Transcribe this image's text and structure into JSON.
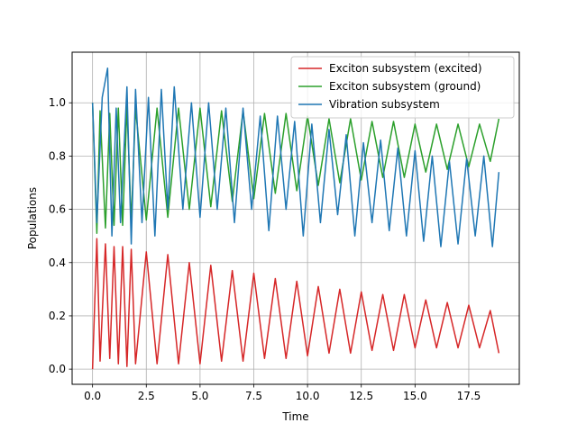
{
  "chart_data": {
    "type": "line",
    "title": "",
    "xlabel": "Time",
    "ylabel": "Populations",
    "xlim": [
      -0.95,
      19.85
    ],
    "ylim": [
      -0.057,
      1.19
    ],
    "x_ticks": [
      0.0,
      2.5,
      5.0,
      7.5,
      10.0,
      12.5,
      15.0,
      17.5
    ],
    "x_tick_labels": [
      "0.0",
      "2.5",
      "5.0",
      "7.5",
      "10.0",
      "12.5",
      "15.0",
      "17.5"
    ],
    "y_ticks": [
      0.0,
      0.2,
      0.4,
      0.6,
      0.8,
      1.0
    ],
    "y_tick_labels": [
      "0.0",
      "0.2",
      "0.4",
      "0.6",
      "0.8",
      "1.0"
    ],
    "grid": true,
    "legend_position": "upper right",
    "x_range": [
      0.0,
      18.9
    ],
    "series": [
      {
        "name": "Exciton subsystem (excited)",
        "color": "#d62728",
        "description": "fast oscillation ~2.6 cycles per time unit, starts at 0.0, peaks decaying from ~0.49 to ~0.22",
        "points": [
          [
            0.0,
            0.0
          ],
          [
            0.2,
            0.49
          ],
          [
            0.35,
            0.03
          ],
          [
            0.6,
            0.47
          ],
          [
            0.8,
            0.04
          ],
          [
            1.0,
            0.46
          ],
          [
            1.2,
            0.02
          ],
          [
            1.4,
            0.46
          ],
          [
            1.6,
            0.01
          ],
          [
            1.8,
            0.45
          ],
          [
            2.0,
            0.02
          ],
          [
            2.5,
            0.44
          ],
          [
            3.0,
            0.02
          ],
          [
            3.5,
            0.43
          ],
          [
            4.0,
            0.02
          ],
          [
            4.5,
            0.4
          ],
          [
            5.0,
            0.02
          ],
          [
            5.5,
            0.39
          ],
          [
            6.0,
            0.03
          ],
          [
            6.5,
            0.37
          ],
          [
            7.0,
            0.03
          ],
          [
            7.5,
            0.36
          ],
          [
            8.0,
            0.04
          ],
          [
            8.5,
            0.34
          ],
          [
            9.0,
            0.04
          ],
          [
            9.5,
            0.33
          ],
          [
            10.0,
            0.05
          ],
          [
            10.5,
            0.31
          ],
          [
            11.0,
            0.06
          ],
          [
            11.5,
            0.3
          ],
          [
            12.0,
            0.06
          ],
          [
            12.5,
            0.29
          ],
          [
            13.0,
            0.07
          ],
          [
            13.5,
            0.28
          ],
          [
            14.0,
            0.07
          ],
          [
            14.5,
            0.28
          ],
          [
            15.0,
            0.08
          ],
          [
            15.5,
            0.26
          ],
          [
            16.0,
            0.08
          ],
          [
            16.5,
            0.25
          ],
          [
            17.0,
            0.08
          ],
          [
            17.5,
            0.24
          ],
          [
            18.0,
            0.08
          ],
          [
            18.5,
            0.22
          ],
          [
            18.9,
            0.06
          ]
        ]
      },
      {
        "name": "Exciton subsystem (ground)",
        "color": "#2ca02c",
        "description": "complement of the excited population (1 - excited)",
        "points": [
          [
            0.0,
            1.0
          ],
          [
            0.2,
            0.51
          ],
          [
            0.35,
            0.97
          ],
          [
            0.6,
            0.53
          ],
          [
            0.8,
            0.96
          ],
          [
            1.0,
            0.54
          ],
          [
            1.2,
            0.98
          ],
          [
            1.4,
            0.54
          ],
          [
            1.6,
            0.99
          ],
          [
            1.8,
            0.55
          ],
          [
            2.0,
            0.98
          ],
          [
            2.5,
            0.56
          ],
          [
            3.0,
            0.98
          ],
          [
            3.5,
            0.57
          ],
          [
            4.0,
            0.98
          ],
          [
            4.5,
            0.6
          ],
          [
            5.0,
            0.98
          ],
          [
            5.5,
            0.61
          ],
          [
            6.0,
            0.97
          ],
          [
            6.5,
            0.63
          ],
          [
            7.0,
            0.97
          ],
          [
            7.5,
            0.64
          ],
          [
            8.0,
            0.96
          ],
          [
            8.5,
            0.66
          ],
          [
            9.0,
            0.96
          ],
          [
            9.5,
            0.67
          ],
          [
            10.0,
            0.95
          ],
          [
            10.5,
            0.69
          ],
          [
            11.0,
            0.94
          ],
          [
            11.5,
            0.7
          ],
          [
            12.0,
            0.94
          ],
          [
            12.5,
            0.71
          ],
          [
            13.0,
            0.93
          ],
          [
            13.5,
            0.72
          ],
          [
            14.0,
            0.93
          ],
          [
            14.5,
            0.72
          ],
          [
            15.0,
            0.92
          ],
          [
            15.5,
            0.74
          ],
          [
            16.0,
            0.92
          ],
          [
            16.5,
            0.75
          ],
          [
            17.0,
            0.92
          ],
          [
            17.5,
            0.76
          ],
          [
            18.0,
            0.92
          ],
          [
            18.5,
            0.78
          ],
          [
            18.9,
            0.94
          ]
        ]
      },
      {
        "name": "Vibration subsystem",
        "color": "#1f77b4",
        "description": "irregular beating oscillation between ~0.45 and ~1.13, max 1.13 near t=0.7",
        "points": [
          [
            0.0,
            1.0
          ],
          [
            0.2,
            0.55
          ],
          [
            0.45,
            1.02
          ],
          [
            0.7,
            1.13
          ],
          [
            0.9,
            0.5
          ],
          [
            1.1,
            0.98
          ],
          [
            1.3,
            0.55
          ],
          [
            1.6,
            1.06
          ],
          [
            1.8,
            0.47
          ],
          [
            2.0,
            1.05
          ],
          [
            2.3,
            0.55
          ],
          [
            2.6,
            1.02
          ],
          [
            2.9,
            0.5
          ],
          [
            3.2,
            1.05
          ],
          [
            3.5,
            0.6
          ],
          [
            3.8,
            1.06
          ],
          [
            4.2,
            0.6
          ],
          [
            4.6,
            1.0
          ],
          [
            5.0,
            0.57
          ],
          [
            5.4,
            1.0
          ],
          [
            5.8,
            0.6
          ],
          [
            6.2,
            0.98
          ],
          [
            6.6,
            0.55
          ],
          [
            7.0,
            0.98
          ],
          [
            7.4,
            0.6
          ],
          [
            7.8,
            0.95
          ],
          [
            8.2,
            0.52
          ],
          [
            8.6,
            0.95
          ],
          [
            9.0,
            0.6
          ],
          [
            9.4,
            0.93
          ],
          [
            9.8,
            0.5
          ],
          [
            10.2,
            0.92
          ],
          [
            10.6,
            0.55
          ],
          [
            11.0,
            0.9
          ],
          [
            11.4,
            0.58
          ],
          [
            11.8,
            0.88
          ],
          [
            12.2,
            0.5
          ],
          [
            12.6,
            0.85
          ],
          [
            13.0,
            0.55
          ],
          [
            13.4,
            0.86
          ],
          [
            13.8,
            0.52
          ],
          [
            14.2,
            0.83
          ],
          [
            14.6,
            0.5
          ],
          [
            15.0,
            0.82
          ],
          [
            15.4,
            0.48
          ],
          [
            15.8,
            0.8
          ],
          [
            16.2,
            0.46
          ],
          [
            16.6,
            0.78
          ],
          [
            17.0,
            0.47
          ],
          [
            17.4,
            0.79
          ],
          [
            17.8,
            0.5
          ],
          [
            18.2,
            0.8
          ],
          [
            18.6,
            0.46
          ],
          [
            18.9,
            0.74
          ]
        ]
      }
    ]
  }
}
